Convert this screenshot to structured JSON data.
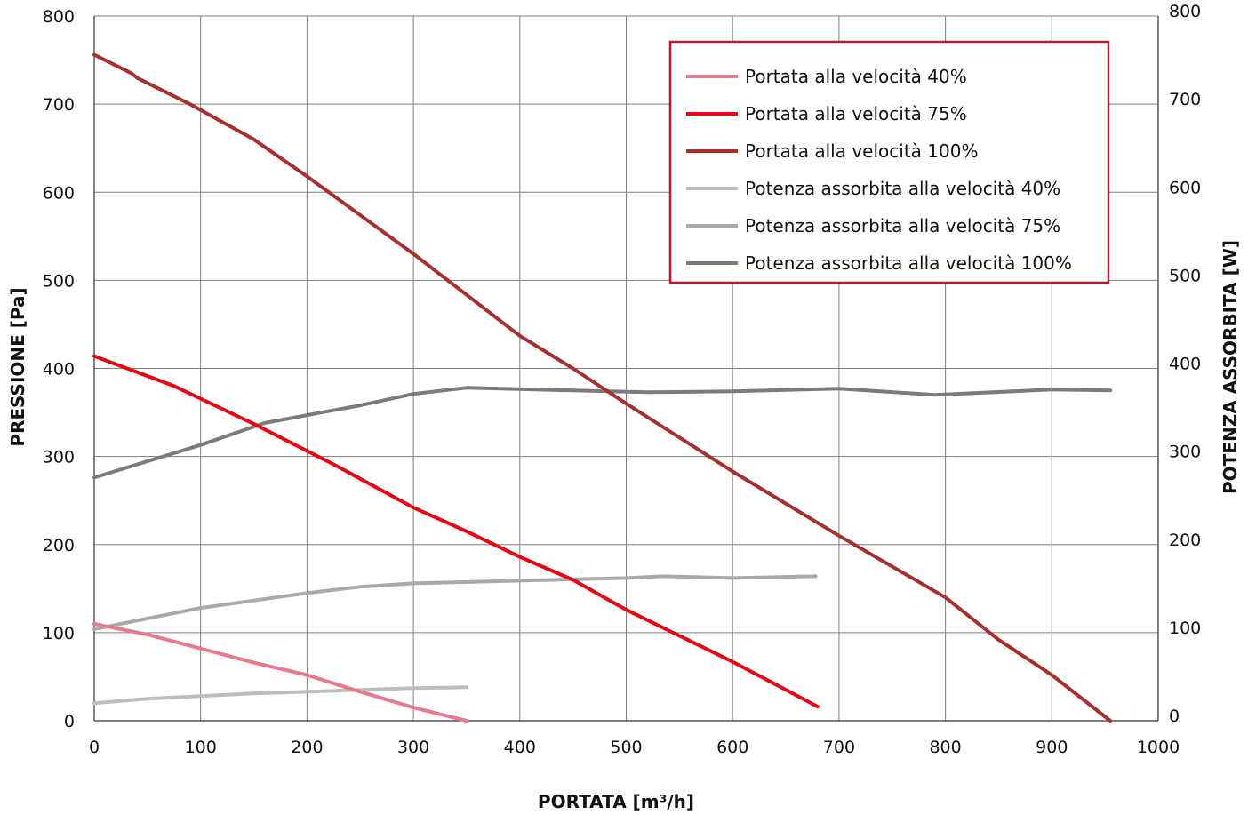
{
  "chart_data": {
    "type": "line",
    "title": "",
    "xlabel": "PORTATA [m³/h]",
    "ylabel": "PRESSIONE [Pa]",
    "y2label": "POTENZA ASSORBITA [W]",
    "xlim": [
      0,
      1000
    ],
    "ylim": [
      0,
      800
    ],
    "y2lim": [
      0,
      800
    ],
    "x_ticks": [
      0,
      100,
      200,
      300,
      400,
      500,
      600,
      700,
      800,
      900,
      1000
    ],
    "y_ticks": [
      0,
      100,
      200,
      300,
      400,
      500,
      600,
      700,
      800
    ],
    "y2_ticks": [
      0,
      100,
      200,
      300,
      400,
      500,
      600,
      700,
      800
    ],
    "grid": true,
    "legend_position": "top-right",
    "series": [
      {
        "name": "Portata alla velocità 40%",
        "color": "#e8798e",
        "axis": "left",
        "points": [
          [
            0,
            110
          ],
          [
            50,
            98
          ],
          [
            100,
            82
          ],
          [
            150,
            66
          ],
          [
            200,
            52
          ],
          [
            250,
            33
          ],
          [
            300,
            15
          ],
          [
            350,
            0
          ]
        ]
      },
      {
        "name": "Portata alla velocità 75%",
        "color": "#e30613",
        "axis": "left",
        "points": [
          [
            0,
            414
          ],
          [
            75,
            380
          ],
          [
            150,
            337
          ],
          [
            225,
            291
          ],
          [
            300,
            242
          ],
          [
            350,
            215
          ],
          [
            400,
            186
          ],
          [
            450,
            160
          ],
          [
            500,
            126
          ],
          [
            600,
            67
          ],
          [
            680,
            16
          ]
        ]
      },
      {
        "name": "Portata alla velocità 100%",
        "color": "#a3312e",
        "axis": "left",
        "points": [
          [
            0,
            756
          ],
          [
            35,
            735
          ],
          [
            40,
            730
          ],
          [
            90,
            700
          ],
          [
            150,
            660
          ],
          [
            200,
            618
          ],
          [
            300,
            530
          ],
          [
            400,
            437
          ],
          [
            450,
            400
          ],
          [
            500,
            360
          ],
          [
            600,
            283
          ],
          [
            700,
            210
          ],
          [
            800,
            140
          ],
          [
            850,
            92
          ],
          [
            900,
            52
          ],
          [
            955,
            0
          ]
        ]
      },
      {
        "name": "Potenza assorbita alla velocità 40%",
        "color": "#bdbdbd",
        "axis": "right",
        "points": [
          [
            0,
            20
          ],
          [
            50,
            25
          ],
          [
            150,
            31
          ],
          [
            250,
            35
          ],
          [
            300,
            37
          ],
          [
            350,
            38
          ]
        ]
      },
      {
        "name": "Potenza assorbita alla velocità 75%",
        "color": "#a9a9a9",
        "axis": "right",
        "points": [
          [
            0,
            104
          ],
          [
            100,
            128
          ],
          [
            200,
            145
          ],
          [
            250,
            152
          ],
          [
            300,
            156
          ],
          [
            400,
            159
          ],
          [
            500,
            162
          ],
          [
            535,
            164
          ],
          [
            600,
            162
          ],
          [
            678,
            164
          ]
        ]
      },
      {
        "name": "Potenza assorbita alla velocità 100%",
        "color": "#7b7b7b",
        "axis": "right",
        "points": [
          [
            0,
            276
          ],
          [
            100,
            313
          ],
          [
            160,
            338
          ],
          [
            250,
            358
          ],
          [
            300,
            371
          ],
          [
            350,
            378
          ],
          [
            450,
            375
          ],
          [
            520,
            373
          ],
          [
            600,
            374
          ],
          [
            700,
            377
          ],
          [
            790,
            370
          ],
          [
            900,
            376
          ],
          [
            955,
            375
          ]
        ]
      }
    ]
  }
}
